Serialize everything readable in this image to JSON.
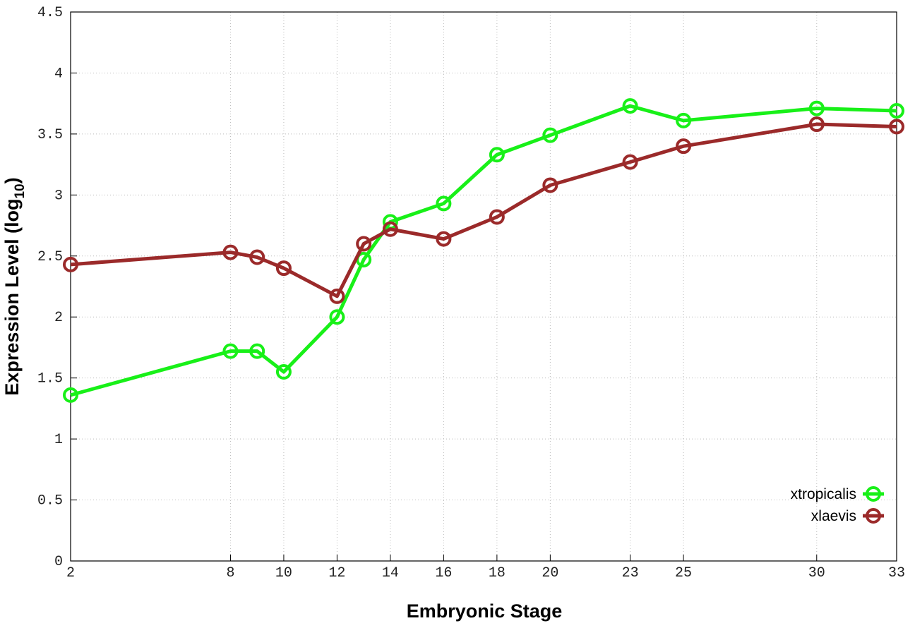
{
  "chart_data": {
    "type": "line",
    "x_label": "Embryonic Stage",
    "y_label": {
      "text": "Expression Level (log",
      "subscript": "10",
      "suffix": ")"
    },
    "x": [
      2,
      8,
      9,
      10,
      12,
      13,
      14,
      16,
      18,
      20,
      23,
      25,
      30,
      33
    ],
    "series": [
      {
        "name": "xtropicalis",
        "color": "#18f018",
        "values": [
          1.36,
          1.72,
          1.72,
          1.55,
          2.0,
          2.47,
          2.78,
          2.93,
          3.33,
          3.49,
          3.73,
          3.61,
          3.71,
          3.69
        ]
      },
      {
        "name": "xlaevis",
        "color": "#9b2a2a",
        "values": [
          2.43,
          2.53,
          2.49,
          2.4,
          2.17,
          2.6,
          2.72,
          2.64,
          2.82,
          3.08,
          3.27,
          3.4,
          3.58,
          3.56
        ]
      }
    ],
    "xlim": [
      2,
      33
    ],
    "xticks": [
      2,
      8,
      10,
      12,
      14,
      16,
      18,
      20,
      23,
      25,
      30,
      33
    ],
    "ylim": [
      0,
      4.5
    ],
    "yticks": [
      0,
      0.5,
      1,
      1.5,
      2,
      2.5,
      3,
      3.5,
      4,
      4.5
    ],
    "grid": true,
    "legend": "lower right"
  }
}
